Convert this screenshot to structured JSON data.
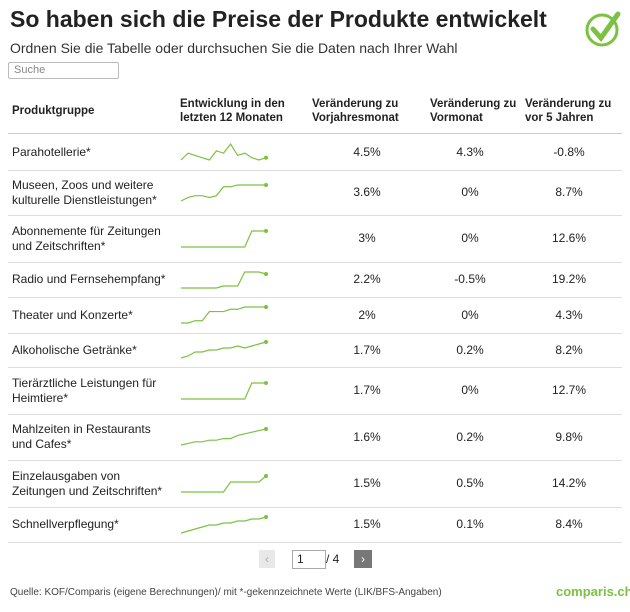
{
  "header": {
    "title": "So haben sich die Preise der Produkte entwickelt",
    "subtitle": "Ordnen Sie die Tabelle oder durchsuchen Sie die Daten nach Ihrer Wahl",
    "search_placeholder": "Suche"
  },
  "table": {
    "columns": [
      "Produktgruppe",
      "Entwicklung in den letzten 12 Monaten",
      "Veränderung zu Vorjahresmonat",
      "Veränderung zu Vormonat",
      "Veränderung zu vor 5 Jahren"
    ],
    "rows": [
      {
        "group": "Parahotellerie*",
        "trend": [
          2,
          5,
          4,
          3,
          2,
          6,
          5,
          9,
          4,
          5,
          3,
          2,
          3
        ],
        "yoy": "4.5%",
        "mom": "4.3%",
        "five_years": "-0.8%"
      },
      {
        "group": "Museen, Zoos und weitere kulturelle Dienstleistungen*",
        "trend": [
          0,
          2,
          3,
          3,
          2,
          3,
          8,
          8,
          9,
          9,
          9,
          9,
          9
        ],
        "yoy": "3.6%",
        "mom": "0%",
        "five_years": "8.7%"
      },
      {
        "group": "Abonnemente für Zeitungen und Zeitschriften*",
        "trend": [
          0,
          0,
          0,
          0,
          0,
          0,
          0,
          0,
          0,
          0,
          10,
          10,
          10
        ],
        "yoy": "3%",
        "mom": "0%",
        "five_years": "12.6%"
      },
      {
        "group": "Radio und Fernsehempfang*",
        "trend": [
          0,
          0,
          0,
          0,
          0,
          0,
          1,
          1,
          1,
          8,
          8,
          8,
          7
        ],
        "yoy": "2.2%",
        "mom": "-0.5%",
        "five_years": "19.2%"
      },
      {
        "group": "Theater und Konzerte*",
        "trend": [
          0,
          0,
          1,
          1,
          5,
          5,
          5,
          6,
          6,
          7,
          7,
          7,
          7
        ],
        "yoy": "2%",
        "mom": "0%",
        "five_years": "4.3%"
      },
      {
        "group": "Alkoholische Getränke*",
        "trend": [
          0,
          1,
          3,
          3,
          4,
          4,
          5,
          5,
          6,
          5,
          6,
          7,
          8
        ],
        "yoy": "1.7%",
        "mom": "0.2%",
        "five_years": "8.2%"
      },
      {
        "group": "Tierärztliche Leistungen für Heimtiere*",
        "trend": [
          0,
          0,
          0,
          0,
          0,
          0,
          0,
          0,
          0,
          0,
          10,
          10,
          10
        ],
        "yoy": "1.7%",
        "mom": "0%",
        "five_years": "12.7%"
      },
      {
        "group": "Mahlzeiten in Restaurants und Cafes*",
        "trend": [
          0,
          1,
          2,
          2,
          3,
          3,
          4,
          4,
          6,
          7,
          8,
          9,
          10
        ],
        "yoy": "1.6%",
        "mom": "0.2%",
        "five_years": "9.8%"
      },
      {
        "group": "Einzelausgaben von Zeitungen und Zeitschriften*",
        "trend": [
          0,
          0,
          0,
          0,
          0,
          0,
          0,
          5,
          5,
          5,
          5,
          5,
          8
        ],
        "yoy": "1.5%",
        "mom": "0.5%",
        "five_years": "14.2%"
      },
      {
        "group": "Schnellverpflegung*",
        "trend": [
          0,
          1,
          2,
          3,
          4,
          4,
          5,
          5,
          6,
          6,
          7,
          7,
          8
        ],
        "yoy": "1.5%",
        "mom": "0.1%",
        "five_years": "8.4%"
      }
    ]
  },
  "pagination": {
    "page": "1",
    "total": "/ 4"
  },
  "footer": {
    "source": "Quelle: KOF/Comparis (eigene Berechnungen)/ mit *-gekennzeichnete Werte (LIK/BFS-Angaben)",
    "brand": "comparis.ch"
  }
}
